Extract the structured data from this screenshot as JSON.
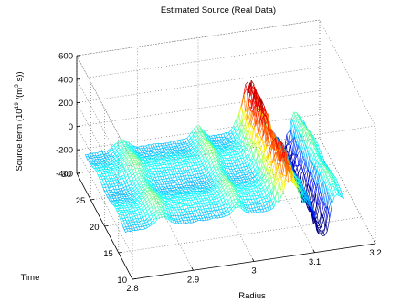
{
  "chart_data": {
    "type": "surface",
    "title": "Estimated Source (Real Data)",
    "xlabel": "Radius",
    "ylabel": "Time",
    "zlabel": "Source term (10^19 /(m^3 s))",
    "zlabel_parts": {
      "pre": "Source term (10",
      "exp1": "19",
      "mid": " /(m",
      "exp2": "3",
      "post": " s))"
    },
    "xlim": [
      2.8,
      3.2
    ],
    "ylim": [
      10,
      30
    ],
    "zlim": [
      -400,
      600
    ],
    "xticks": [
      "2.8",
      "2.9",
      "3",
      "3.1",
      "3.2"
    ],
    "yticks": [
      "10",
      "15",
      "20",
      "25",
      "30"
    ],
    "zticks": [
      "600",
      "400",
      "200",
      "0",
      "-200",
      "-400"
    ],
    "grid": true,
    "colormap": "jet",
    "surface_features": [
      {
        "radius": 2.98,
        "description": "ridge",
        "source_term_peak": 120
      },
      {
        "radius": 3.07,
        "description": "peak",
        "source_term_peak": 330
      },
      {
        "radius": 3.13,
        "description": "trough",
        "source_term_min": -380
      }
    ]
  }
}
